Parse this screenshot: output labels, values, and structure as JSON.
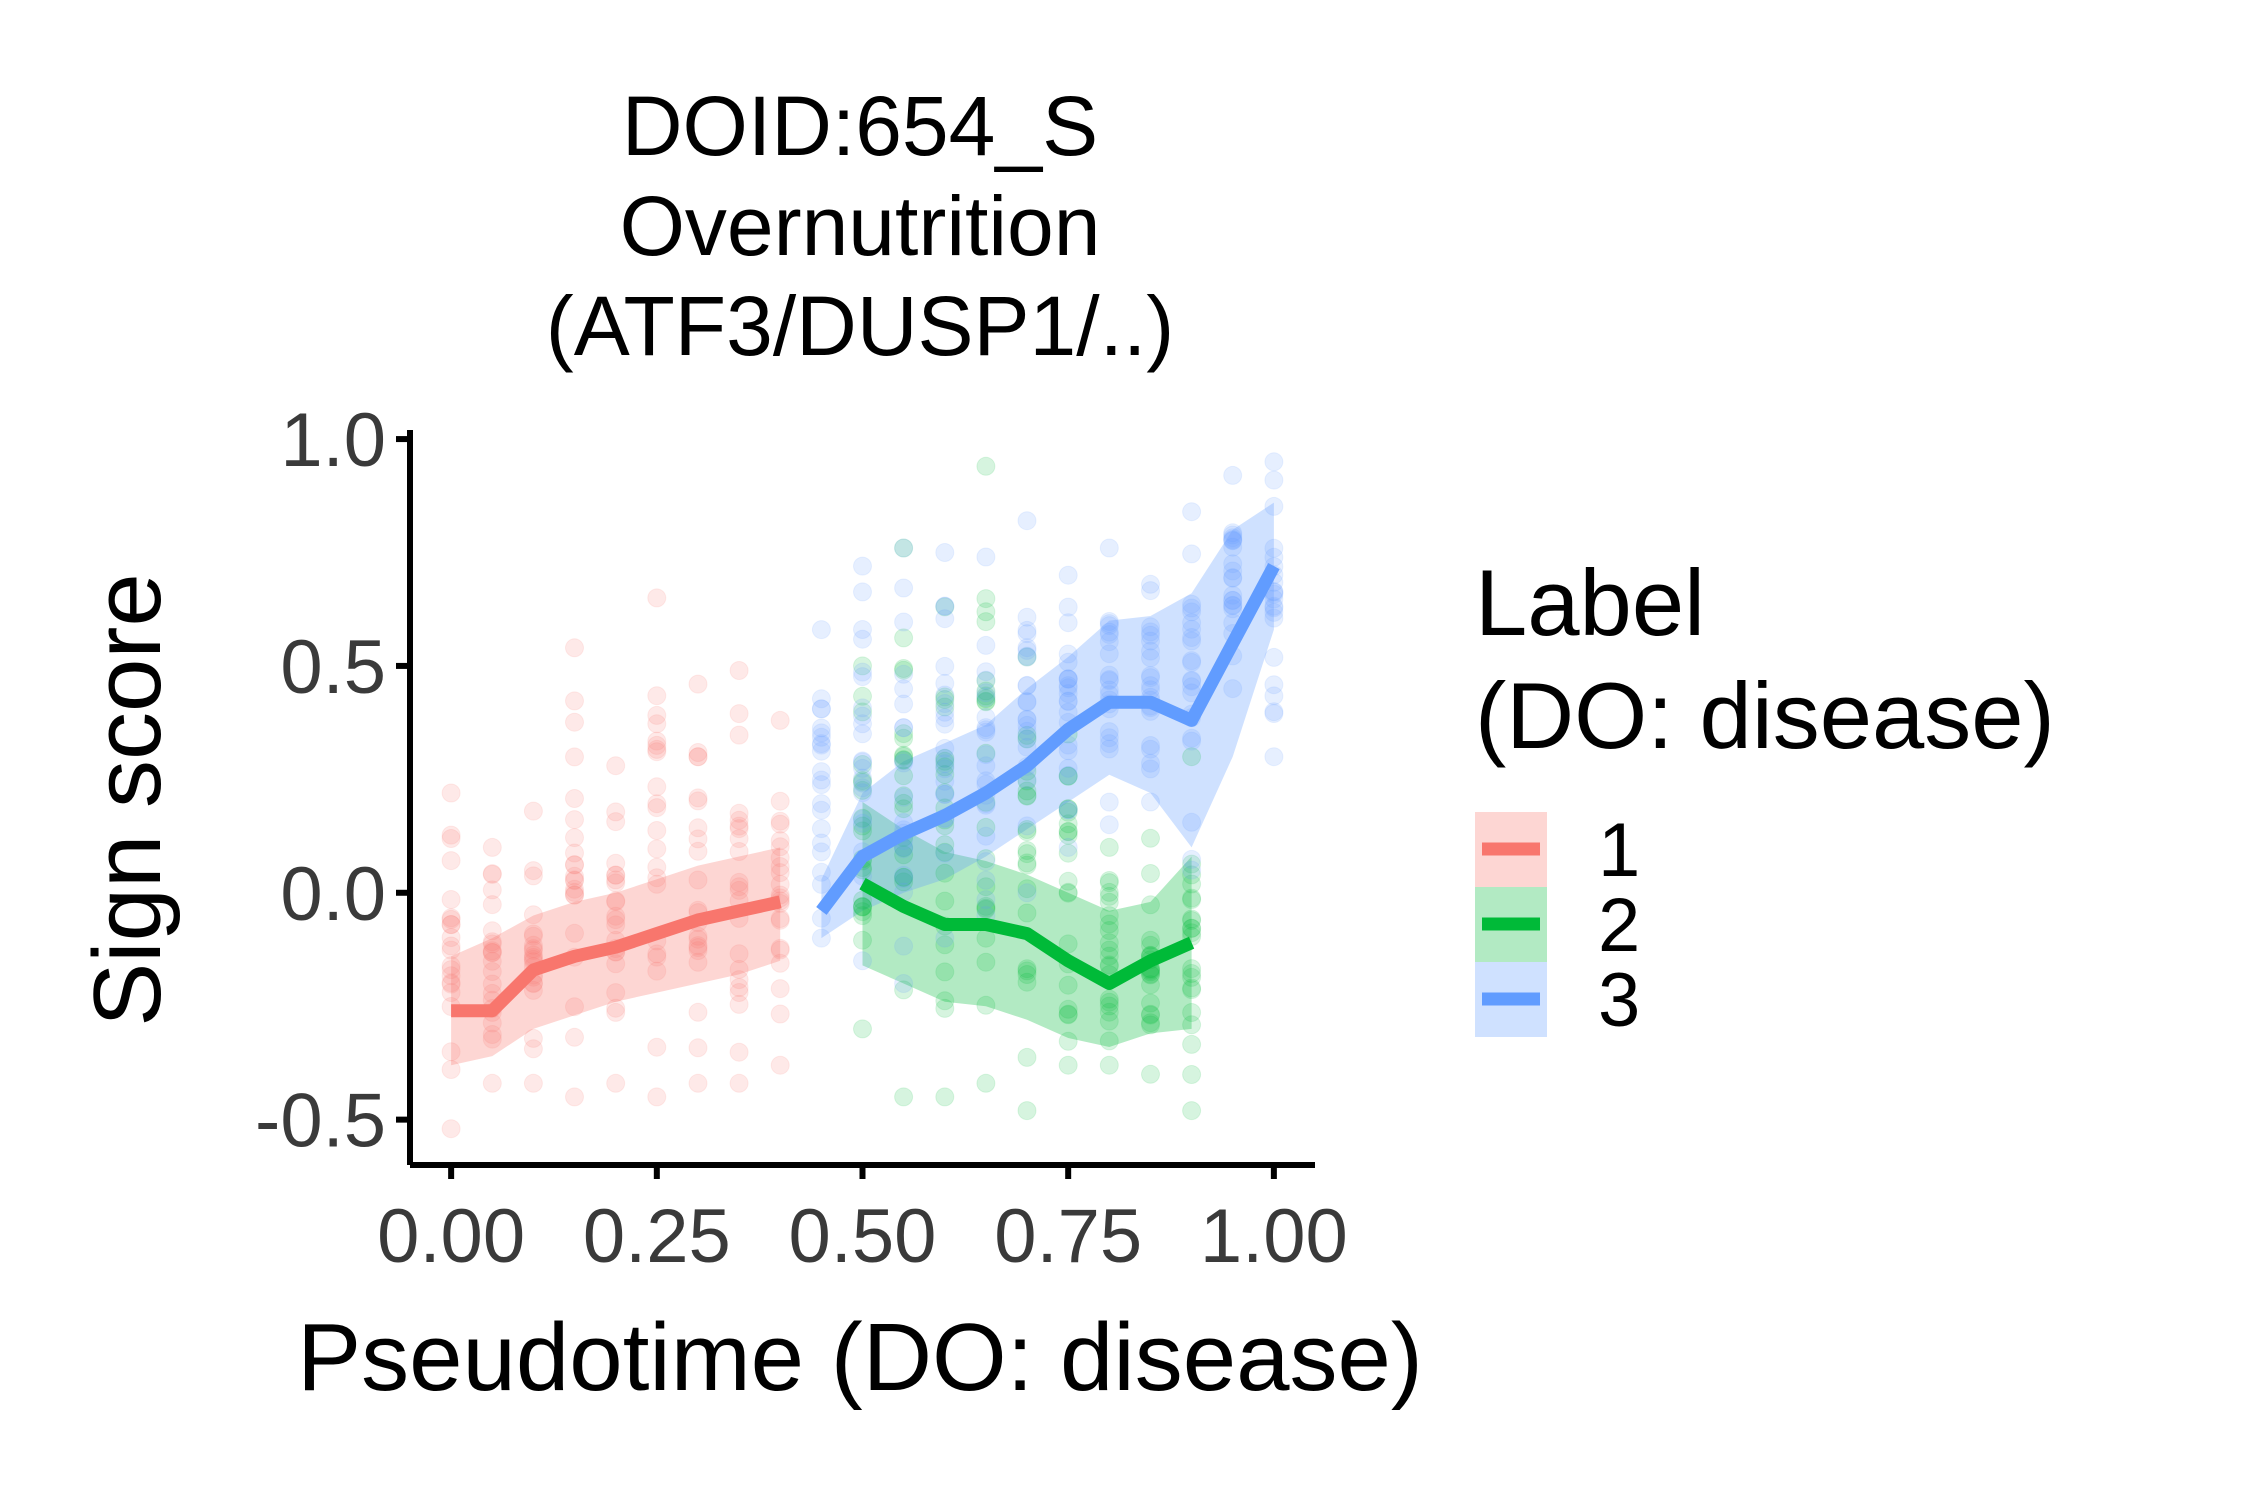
{
  "chart_data": {
    "type": "line",
    "title_lines": [
      "DOID:654_S",
      "Overnutrition",
      "(ATF3/DUSP1/..)"
    ],
    "xlabel": "Pseudotime (DO: disease)",
    "ylabel": "Sign score",
    "xlim": [
      -0.05,
      1.05
    ],
    "ylim": [
      -0.6,
      1.02
    ],
    "x_ticks": [
      0.0,
      0.25,
      0.5,
      0.75,
      1.0
    ],
    "x_tick_labels": [
      "0.00",
      "0.25",
      "0.50",
      "0.75",
      "1.00"
    ],
    "y_ticks": [
      -0.5,
      0.0,
      0.5,
      1.0
    ],
    "y_tick_labels": [
      "-0.5",
      "0.0",
      "0.5",
      "1.0"
    ],
    "grid": false,
    "legend": {
      "title_lines": [
        "Label",
        "(DO: disease)"
      ],
      "position": "right",
      "entries": [
        "1",
        "2",
        "3"
      ]
    },
    "colors": {
      "1": "#F8766D",
      "2": "#00BA38",
      "3": "#619CFF"
    },
    "series": [
      {
        "name": "1",
        "x": [
          0.0,
          0.05,
          0.1,
          0.15,
          0.2,
          0.25,
          0.3,
          0.35,
          0.4
        ],
        "y": [
          -0.26,
          -0.26,
          -0.17,
          -0.14,
          -0.12,
          -0.09,
          -0.06,
          -0.04,
          -0.02
        ],
        "lower": [
          -0.38,
          -0.36,
          -0.3,
          -0.27,
          -0.24,
          -0.22,
          -0.2,
          -0.18,
          -0.15
        ],
        "upper": [
          -0.14,
          -0.1,
          -0.05,
          -0.02,
          0.0,
          0.03,
          0.06,
          0.08,
          0.1
        ],
        "scatter_range": [
          [
            -0.52,
            0.22
          ],
          [
            -0.42,
            0.1
          ],
          [
            -0.42,
            0.18
          ],
          [
            -0.45,
            0.54
          ],
          [
            -0.42,
            0.28
          ],
          [
            -0.45,
            0.65
          ],
          [
            -0.42,
            0.46
          ],
          [
            -0.42,
            0.49
          ],
          [
            -0.38,
            0.38
          ]
        ]
      },
      {
        "name": "2",
        "x": [
          0.5,
          0.55,
          0.6,
          0.65,
          0.7,
          0.75,
          0.8,
          0.85,
          0.9
        ],
        "y": [
          0.02,
          -0.03,
          -0.07,
          -0.07,
          -0.09,
          -0.15,
          -0.2,
          -0.15,
          -0.11
        ],
        "lower": [
          -0.16,
          -0.2,
          -0.24,
          -0.25,
          -0.28,
          -0.32,
          -0.34,
          -0.31,
          -0.3
        ],
        "upper": [
          0.2,
          0.14,
          0.09,
          0.07,
          0.04,
          0.0,
          -0.04,
          -0.02,
          0.08
        ],
        "scatter_range": [
          [
            -0.3,
            0.5
          ],
          [
            -0.45,
            0.76
          ],
          [
            -0.45,
            0.63
          ],
          [
            -0.42,
            0.94
          ],
          [
            -0.48,
            0.52
          ],
          [
            -0.38,
            0.35
          ],
          [
            -0.38,
            0.1
          ],
          [
            -0.4,
            0.12
          ],
          [
            -0.48,
            0.3
          ]
        ]
      },
      {
        "name": "3",
        "x": [
          0.45,
          0.5,
          0.55,
          0.6,
          0.65,
          0.7,
          0.75,
          0.8,
          0.85,
          0.9,
          0.95,
          1.0
        ],
        "y": [
          -0.04,
          0.08,
          0.13,
          0.17,
          0.22,
          0.28,
          0.36,
          0.42,
          0.42,
          0.38,
          0.55,
          0.72
        ],
        "lower": [
          -0.1,
          -0.04,
          0.0,
          0.03,
          0.08,
          0.14,
          0.2,
          0.26,
          0.22,
          0.1,
          0.3,
          0.58
        ],
        "upper": [
          0.03,
          0.22,
          0.29,
          0.33,
          0.37,
          0.45,
          0.52,
          0.6,
          0.61,
          0.66,
          0.8,
          0.86
        ],
        "scatter_range": [
          [
            -0.1,
            0.58
          ],
          [
            -0.15,
            0.72
          ],
          [
            -0.2,
            0.76
          ],
          [
            -0.1,
            0.75
          ],
          [
            -0.05,
            0.74
          ],
          [
            0.0,
            0.82
          ],
          [
            0.1,
            0.7
          ],
          [
            0.15,
            0.76
          ],
          [
            0.2,
            0.68
          ],
          [
            0.05,
            0.84
          ],
          [
            0.45,
            0.92
          ],
          [
            0.3,
            0.95
          ]
        ]
      }
    ]
  }
}
